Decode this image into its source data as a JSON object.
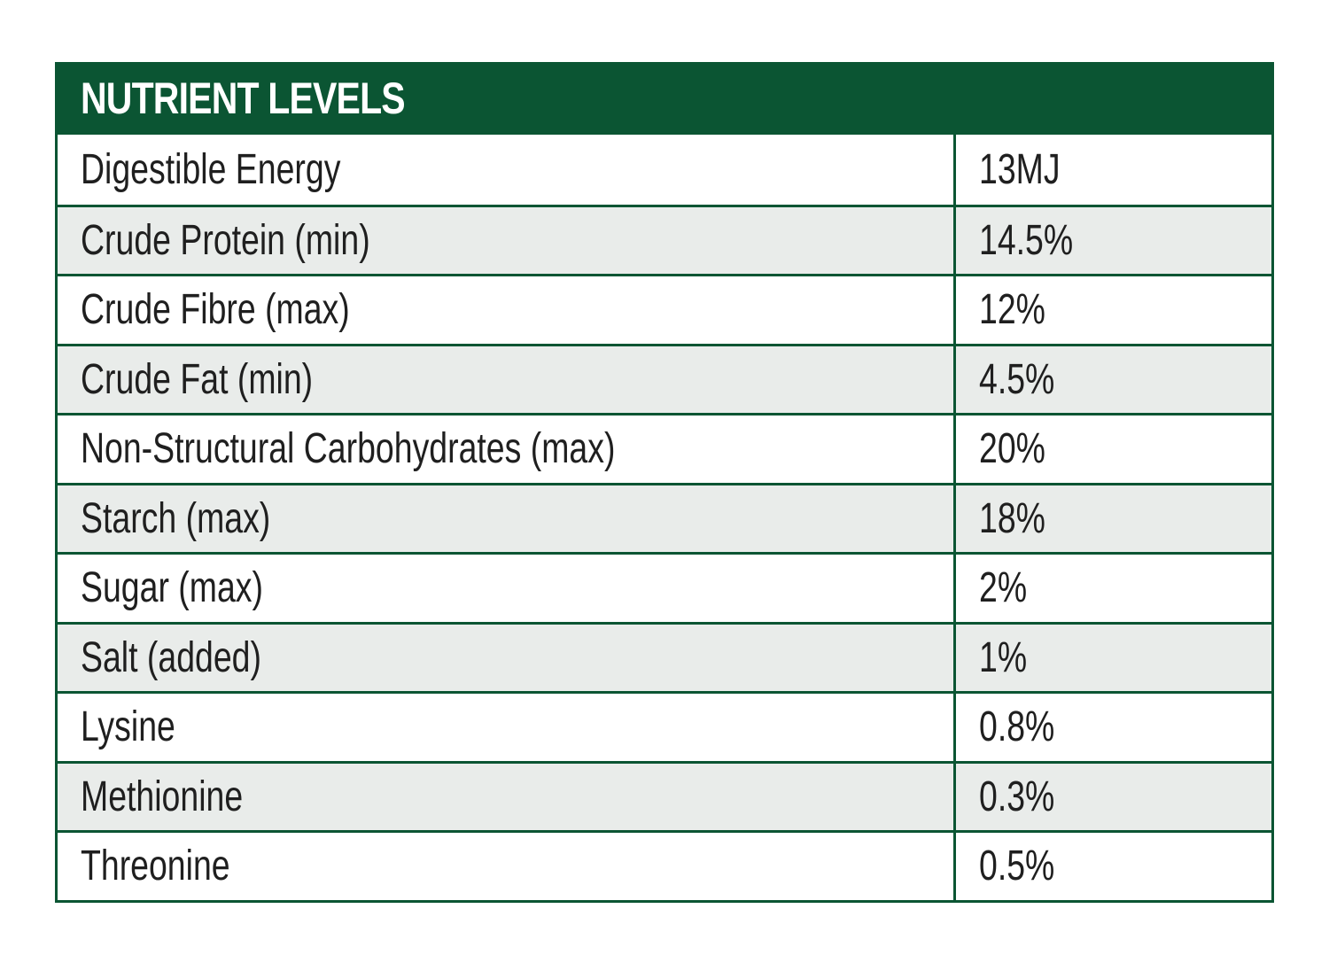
{
  "table": {
    "title": "NUTRIENT LEVELS",
    "colors": {
      "header_bg": "#0b5533",
      "border": "#0b5533",
      "alt_row_bg": "#e9ecea"
    },
    "rows": [
      {
        "name": "Digestible Energy",
        "value": "13MJ"
      },
      {
        "name": "Crude Protein (min)",
        "value": "14.5%"
      },
      {
        "name": "Crude Fibre (max)",
        "value": "12%"
      },
      {
        "name": "Crude Fat (min)",
        "value": "4.5%"
      },
      {
        "name": "Non-Structural Carbohydrates (max)",
        "value": "20%"
      },
      {
        "name": "Starch (max)",
        "value": "18%"
      },
      {
        "name": "Sugar (max)",
        "value": "2%"
      },
      {
        "name": "Salt (added)",
        "value": "1%"
      },
      {
        "name": "Lysine",
        "value": "0.8%"
      },
      {
        "name": "Methionine",
        "value": "0.3%"
      },
      {
        "name": "Threonine",
        "value": "0.5%"
      }
    ]
  }
}
